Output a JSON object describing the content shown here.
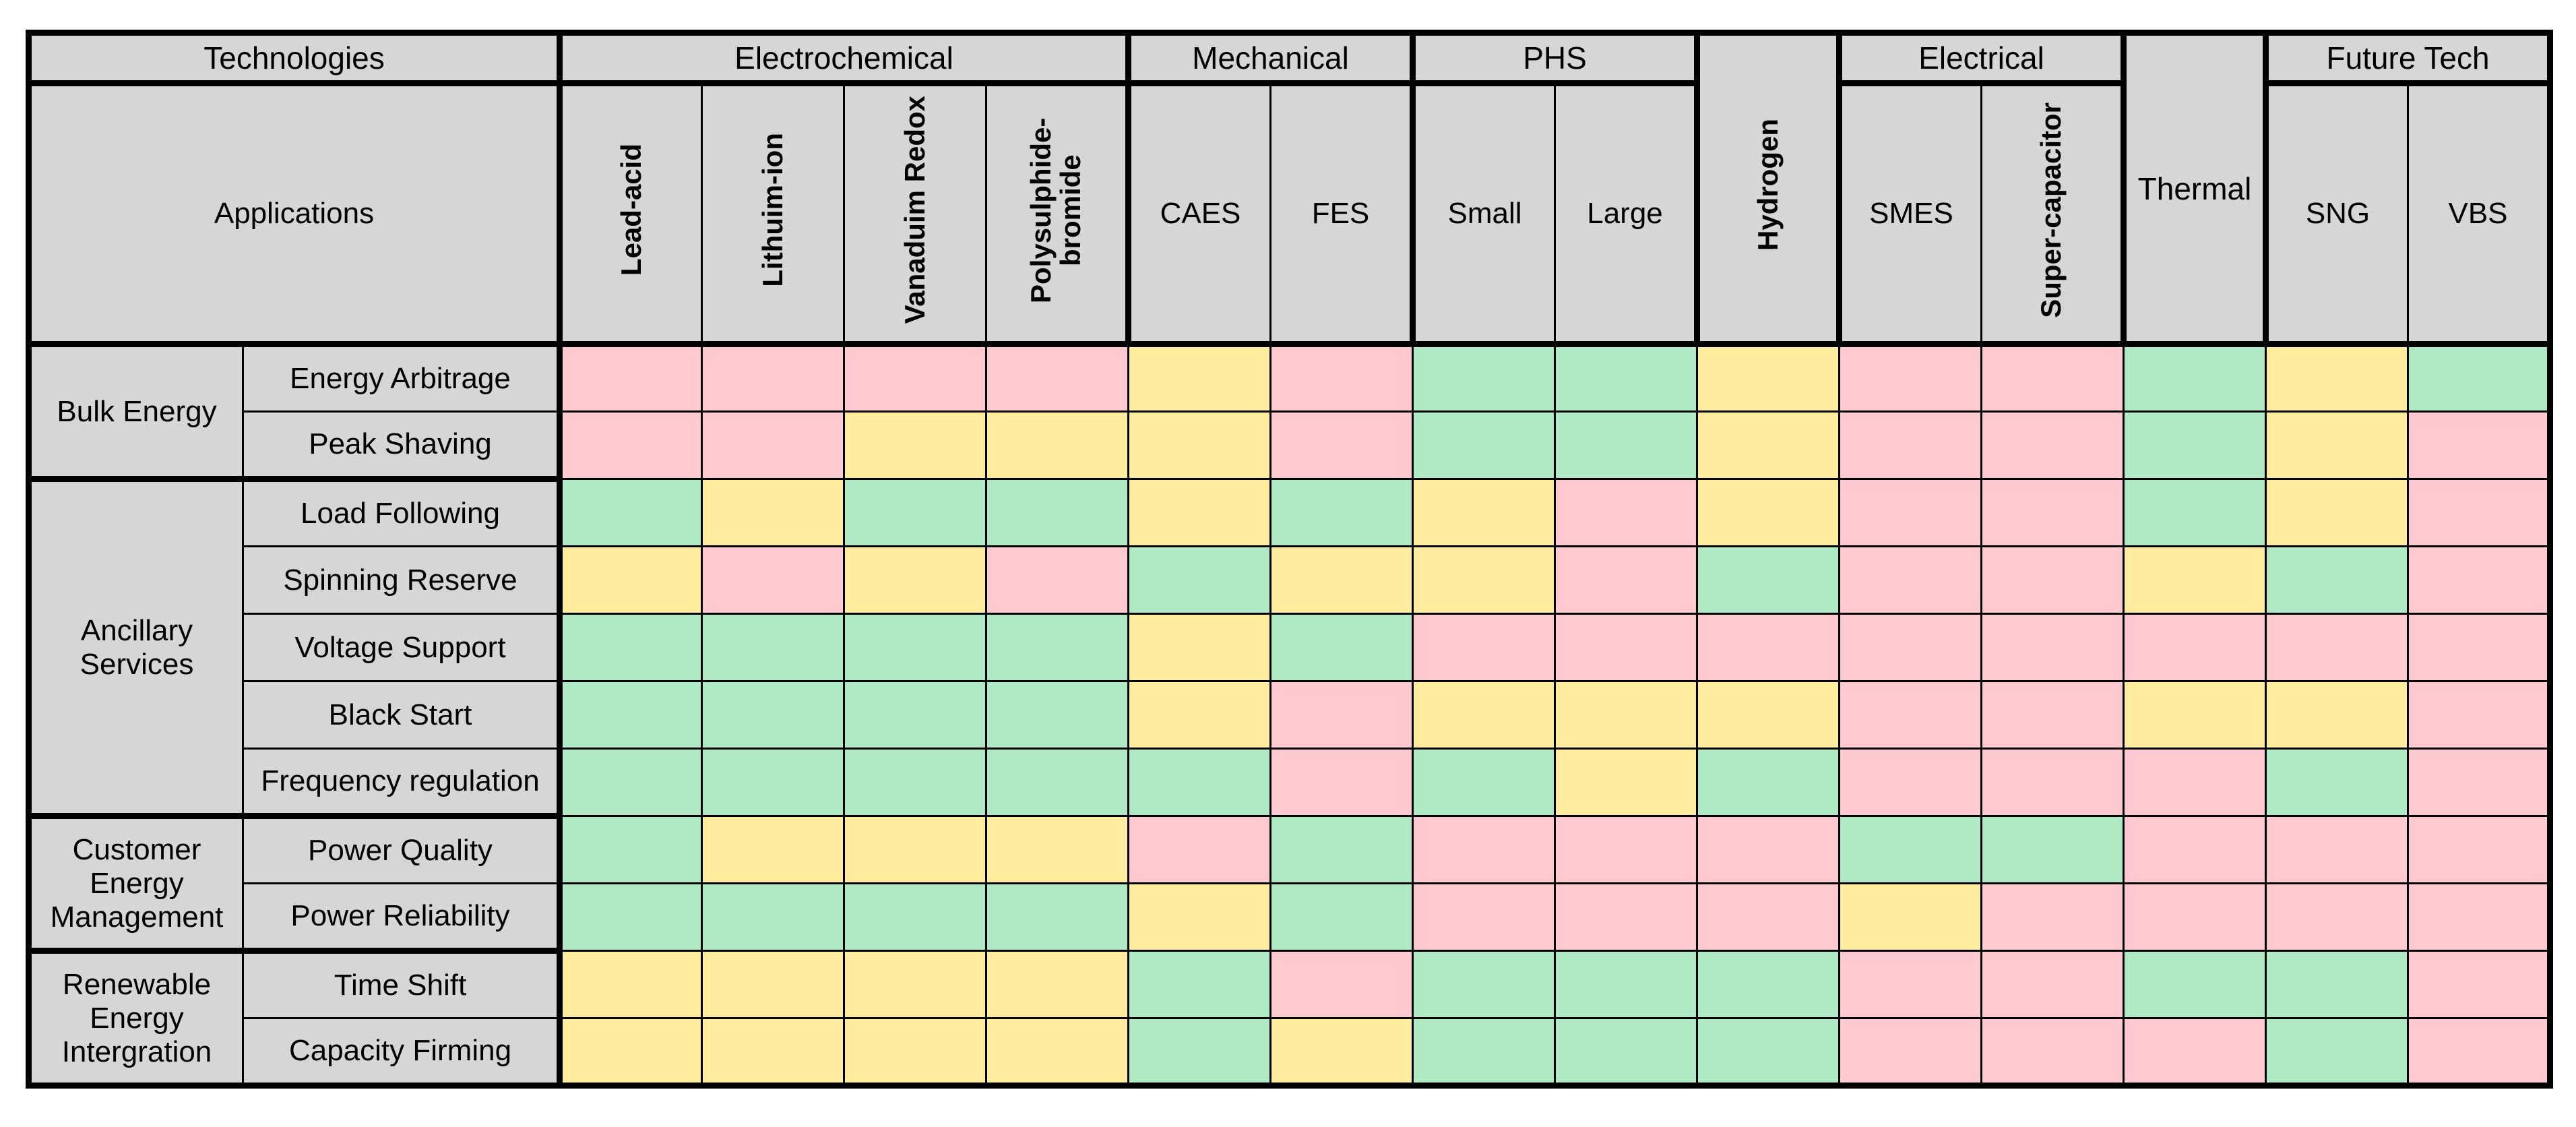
{
  "corner": {
    "technologies": "Technologies",
    "applications": "Applications"
  },
  "chart_data": {
    "type": "heatmap",
    "column_groups": [
      {
        "label": "Electrochemical",
        "span": 4
      },
      {
        "label": "Mechanical",
        "span": 2
      },
      {
        "label": "PHS",
        "span": 2
      },
      {
        "label": "",
        "span": 1,
        "merged_column": 8
      },
      {
        "label": "Electrical",
        "span": 2
      },
      {
        "label": "",
        "span": 1,
        "merged_column": 11
      },
      {
        "label": "Future Tech",
        "span": 2
      }
    ],
    "columns": [
      "Lead-acid",
      "Lithuim-ion",
      "Vanaduim Redox",
      "Polysulphide-bromide",
      "CAES",
      "FES",
      "Small",
      "Large",
      "Hydrogen",
      "SMES",
      "Super-capacitor",
      "Thermal",
      "SNG",
      "VBS"
    ],
    "rotated_columns": [
      0,
      1,
      2,
      3,
      8,
      10
    ],
    "row_groups": [
      {
        "label": "Bulk Energy",
        "rows": [
          "Energy Arbitrage",
          "Peak Shaving"
        ]
      },
      {
        "label": "Ancillary Services",
        "rows": [
          "Load Following",
          "Spinning Reserve",
          "Voltage Support",
          "Black Start",
          "Frequency regulation"
        ]
      },
      {
        "label": "Customer Energy Management",
        "rows": [
          "Power Quality",
          "Power Reliability"
        ]
      },
      {
        "label": "Renewable Energy Intergration",
        "rows": [
          "Time Shift",
          "Capacity Firming"
        ]
      }
    ],
    "cell_color_codes": {
      "P": "pink",
      "Y": "yellow",
      "G": "green"
    },
    "colors": {
      "pink": "#FFC9D2",
      "yellow": "#FFEC9E",
      "green": "#AFEAC5",
      "header_bg": "#D6D6D6",
      "border": "#000000",
      "page_bg": "#FFFFFF"
    },
    "matrix": [
      [
        "P",
        "P",
        "P",
        "P",
        "Y",
        "P",
        "G",
        "G",
        "Y",
        "P",
        "P",
        "G",
        "Y",
        "G"
      ],
      [
        "P",
        "P",
        "Y",
        "Y",
        "Y",
        "P",
        "G",
        "G",
        "Y",
        "P",
        "P",
        "G",
        "Y",
        "P"
      ],
      [
        "G",
        "Y",
        "G",
        "G",
        "Y",
        "G",
        "Y",
        "P",
        "Y",
        "P",
        "P",
        "G",
        "Y",
        "P"
      ],
      [
        "Y",
        "P",
        "Y",
        "P",
        "G",
        "Y",
        "Y",
        "P",
        "G",
        "P",
        "P",
        "Y",
        "G",
        "P"
      ],
      [
        "G",
        "G",
        "G",
        "G",
        "Y",
        "G",
        "P",
        "P",
        "P",
        "P",
        "P",
        "P",
        "P",
        "P"
      ],
      [
        "G",
        "G",
        "G",
        "G",
        "Y",
        "P",
        "Y",
        "Y",
        "Y",
        "P",
        "P",
        "Y",
        "Y",
        "P"
      ],
      [
        "G",
        "G",
        "G",
        "G",
        "G",
        "P",
        "G",
        "Y",
        "G",
        "P",
        "P",
        "P",
        "G",
        "P"
      ],
      [
        "G",
        "Y",
        "Y",
        "Y",
        "P",
        "G",
        "P",
        "P",
        "P",
        "G",
        "G",
        "P",
        "P",
        "P"
      ],
      [
        "G",
        "G",
        "G",
        "G",
        "Y",
        "G",
        "P",
        "P",
        "P",
        "Y",
        "P",
        "P",
        "P",
        "P"
      ],
      [
        "Y",
        "Y",
        "Y",
        "Y",
        "G",
        "P",
        "G",
        "G",
        "G",
        "P",
        "P",
        "G",
        "G",
        "P"
      ],
      [
        "Y",
        "Y",
        "Y",
        "Y",
        "G",
        "Y",
        "G",
        "G",
        "G",
        "P",
        "P",
        "P",
        "G",
        "P"
      ]
    ]
  }
}
